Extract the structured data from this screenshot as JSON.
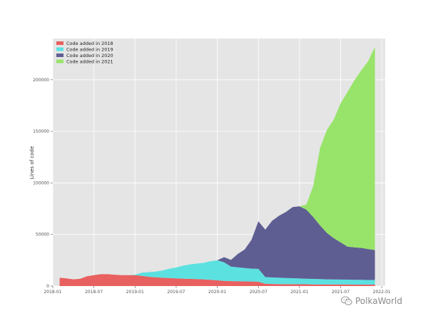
{
  "chart_data": {
    "type": "area",
    "stacked": true,
    "ylabel": "Lines of code",
    "xlabel": "",
    "ylim": [
      0,
      240000
    ],
    "xlim": [
      "2018-01",
      "2022-01"
    ],
    "grid": true,
    "legend_position": "top-left",
    "x_ticks": [
      "2018-01",
      "2018-07",
      "2019-01",
      "2019-07",
      "2020-01",
      "2020-07",
      "2021-01",
      "2021-07",
      "2022-01"
    ],
    "y_ticks": [
      0,
      50000,
      100000,
      150000,
      200000
    ],
    "x": [
      "2018-02",
      "2018-03",
      "2018-04",
      "2018-05",
      "2018-06",
      "2018-07",
      "2018-08",
      "2018-09",
      "2018-10",
      "2018-11",
      "2018-12",
      "2019-01",
      "2019-02",
      "2019-03",
      "2019-04",
      "2019-05",
      "2019-06",
      "2019-07",
      "2019-08",
      "2019-09",
      "2019-10",
      "2019-11",
      "2019-12",
      "2020-01",
      "2020-02",
      "2020-03",
      "2020-04",
      "2020-05",
      "2020-06",
      "2020-07",
      "2020-08",
      "2020-09",
      "2020-10",
      "2020-11",
      "2020-12",
      "2021-01",
      "2021-02",
      "2021-03",
      "2021-04",
      "2021-05",
      "2021-06",
      "2021-07",
      "2021-08",
      "2021-09",
      "2021-10",
      "2021-11",
      "2021-12"
    ],
    "series": [
      {
        "name": "Code added in 2018",
        "color": "#e8605f",
        "values": [
          8000,
          7500,
          6500,
          7000,
          9500,
          10500,
          11500,
          11500,
          11000,
          10500,
          10500,
          10500,
          9800,
          9000,
          8500,
          8000,
          7800,
          7500,
          7200,
          7000,
          6800,
          6500,
          6000,
          5500,
          5000,
          4800,
          4600,
          4500,
          4400,
          4200,
          2200,
          2000,
          1900,
          1800,
          1800,
          1700,
          1700,
          1600,
          1600,
          1500,
          1500,
          1500,
          1500,
          1400,
          1400,
          1400,
          1400
        ]
      },
      {
        "name": "Code added in 2019",
        "color": "#5ce1e1",
        "values": [
          0,
          0,
          0,
          0,
          0,
          0,
          0,
          0,
          0,
          0,
          0,
          500,
          3200,
          4500,
          5500,
          7000,
          9000,
          10500,
          12500,
          14000,
          15000,
          16000,
          18000,
          19500,
          18000,
          14000,
          13500,
          13000,
          12500,
          12500,
          6500,
          6300,
          6200,
          6000,
          5800,
          5600,
          5400,
          5300,
          5200,
          5000,
          4900,
          4800,
          4700,
          4600,
          4600,
          4500,
          4500
        ]
      },
      {
        "name": "Code added in 2020",
        "color": "#5f5e93",
        "values": [
          0,
          0,
          0,
          0,
          0,
          0,
          0,
          0,
          0,
          0,
          0,
          0,
          0,
          0,
          0,
          0,
          0,
          0,
          0,
          0,
          0,
          0,
          0,
          0,
          5000,
          6500,
          13000,
          18000,
          28000,
          46000,
          46000,
          55000,
          60000,
          64000,
          69000,
          70000,
          67000,
          60000,
          52000,
          45000,
          40000,
          36000,
          32000,
          31500,
          31000,
          30000,
          29000
        ]
      },
      {
        "name": "Code added in 2021",
        "color": "#98e46a",
        "values": [
          0,
          0,
          0,
          0,
          0,
          0,
          0,
          0,
          0,
          0,
          0,
          0,
          0,
          0,
          0,
          0,
          0,
          0,
          0,
          0,
          0,
          0,
          0,
          0,
          0,
          0,
          0,
          0,
          0,
          0,
          0,
          0,
          0,
          0,
          0,
          0,
          5000,
          30000,
          75000,
          100000,
          115000,
          135000,
          150000,
          162000,
          172000,
          182000,
          197000
        ]
      }
    ]
  },
  "watermark": {
    "text": "PolkaWorld",
    "icon": "wechat-icon"
  }
}
